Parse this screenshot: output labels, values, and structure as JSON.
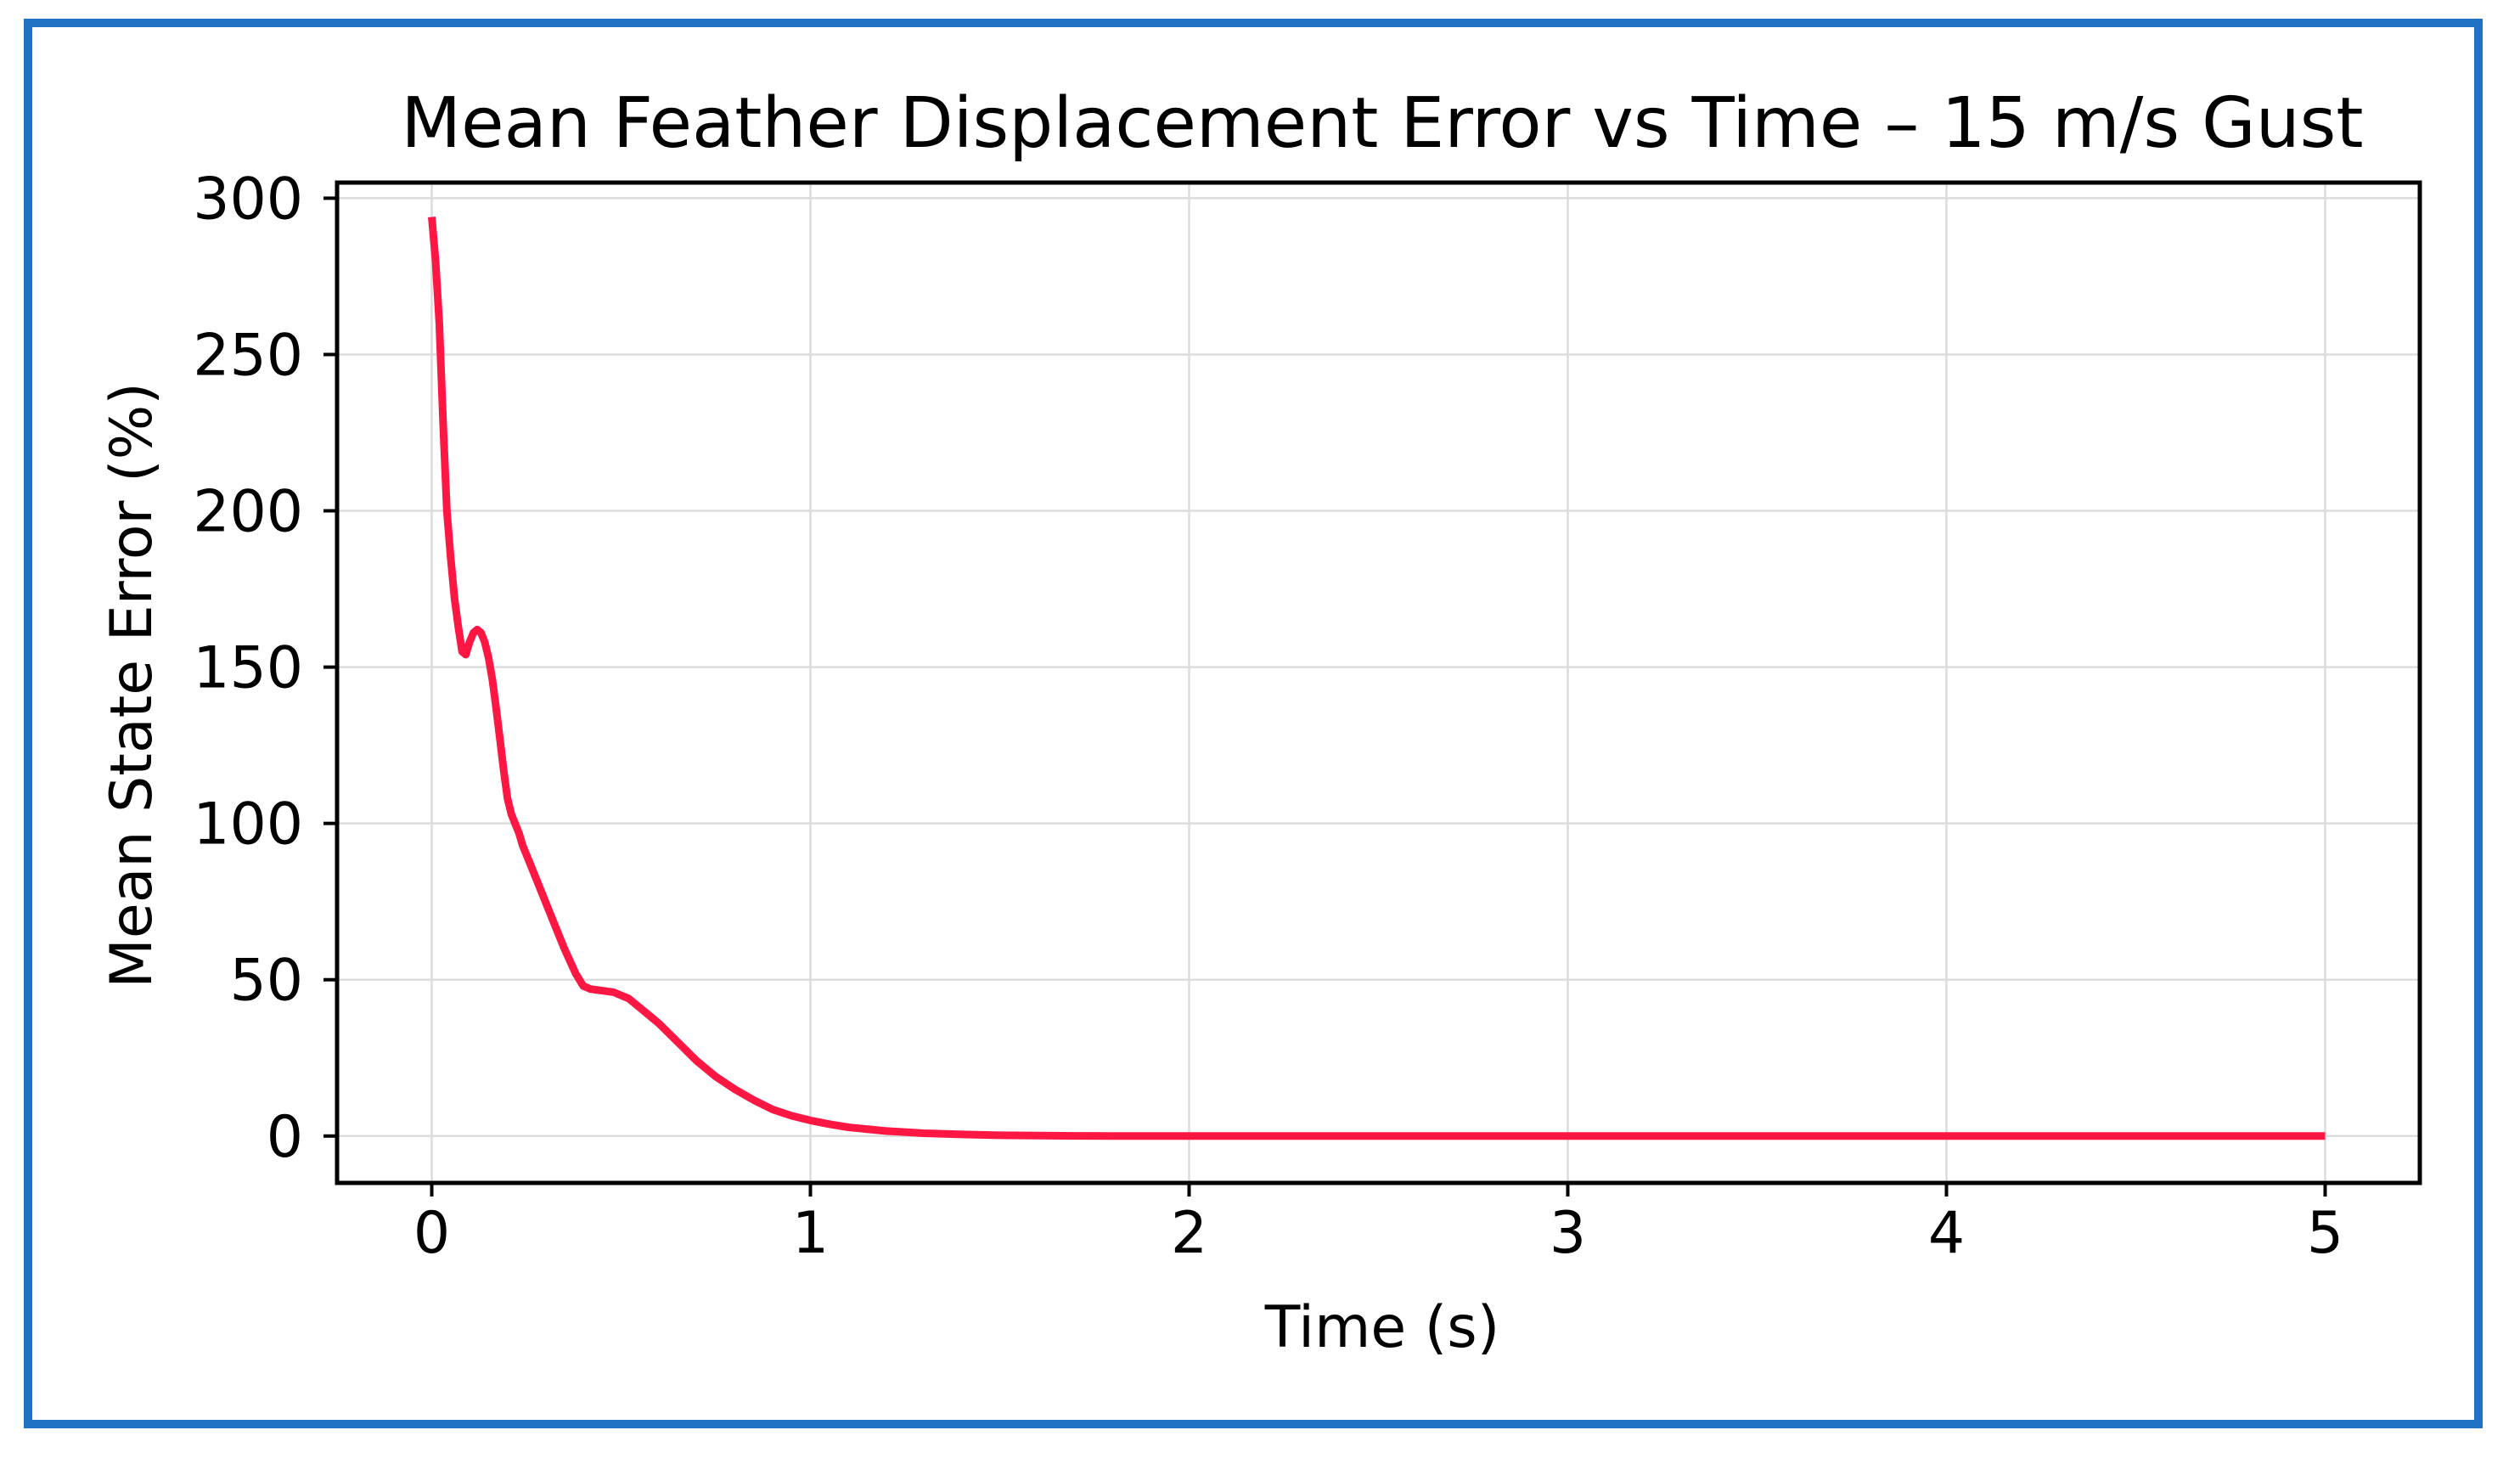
{
  "frame_color": "#1f72c4",
  "chart_data": {
    "type": "line",
    "title": "Mean Feather Displacement Error vs Time – 15 m/s Gust",
    "xlabel": "Time (s)",
    "ylabel": "Mean State Error (%)",
    "xlim": [
      -0.25,
      5.25
    ],
    "ylim": [
      -15,
      305
    ],
    "xticks": [
      0,
      1,
      2,
      3,
      4,
      5
    ],
    "yticks": [
      0,
      50,
      100,
      150,
      200,
      250,
      300
    ],
    "grid": true,
    "legend": "none",
    "line_color": "#ff1744",
    "series": [
      {
        "x": [
          0,
          0.01,
          0.02,
          0.03,
          0.04,
          0.05,
          0.06,
          0.07,
          0.08,
          0.09,
          0.1,
          0.11,
          0.12,
          0.13,
          0.14,
          0.15,
          0.16,
          0.17,
          0.18,
          0.19,
          0.2,
          0.21,
          0.22,
          0.23,
          0.24,
          0.26,
          0.28,
          0.3,
          0.32,
          0.35,
          0.38,
          0.4,
          0.42,
          0.45,
          0.48,
          0.5,
          0.52,
          0.55,
          0.58,
          0.6,
          0.65,
          0.7,
          0.75,
          0.8,
          0.85,
          0.9,
          0.95,
          1.0,
          1.05,
          1.1,
          1.2,
          1.3,
          1.4,
          1.5,
          1.6,
          1.7,
          1.8,
          2.0,
          2.2,
          2.5,
          3.0,
          3.5,
          4.0,
          4.5,
          5.0
        ],
        "y": [
          294,
          280,
          260,
          228,
          200,
          185,
          172,
          163,
          155,
          154,
          158,
          161,
          162,
          161,
          158,
          153,
          146,
          137,
          127,
          117,
          108,
          103,
          100,
          97,
          93,
          87,
          81,
          75,
          69,
          60,
          52,
          48,
          47,
          46.5,
          46,
          45,
          44,
          41,
          38,
          36,
          30,
          24,
          19,
          15,
          11.5,
          8.5,
          6.5,
          5,
          3.8,
          2.8,
          1.6,
          0.9,
          0.5,
          0.25,
          0.12,
          0.06,
          0.03,
          0.01,
          0,
          0,
          0,
          0,
          0,
          0,
          0
        ]
      }
    ]
  }
}
